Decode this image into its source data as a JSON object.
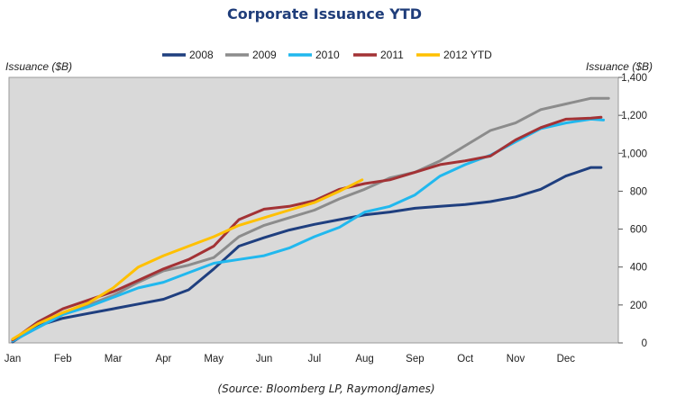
{
  "chart_data": {
    "type": "line",
    "title": "Corporate Issuance YTD",
    "ylabel_left": "Issuance ($B)",
    "ylabel_right": "Issuance ($B)",
    "months": [
      "Jan",
      "Feb",
      "Mar",
      "Apr",
      "May",
      "Jun",
      "Jul",
      "Aug",
      "Sep",
      "Oct",
      "Nov",
      "Dec"
    ],
    "ylim": [
      0,
      1400
    ],
    "yticks": [
      0,
      200,
      400,
      600,
      800,
      1000,
      1200,
      1400
    ],
    "ytick_labels": [
      "0",
      "200",
      "400",
      "600",
      "800",
      "1,000",
      "1,200",
      "1,400"
    ],
    "plot_background": "#d9d9d9",
    "legend_position": "top",
    "series": [
      {
        "name": "2008",
        "color": "#1f3f7f",
        "x": [
          0,
          0.5,
          1,
          1.5,
          2,
          2.5,
          3,
          3.5,
          4,
          4.5,
          5,
          5.5,
          6,
          6.5,
          7,
          7.5,
          8,
          8.5,
          9,
          9.5,
          10,
          10.5,
          11,
          11.5,
          11.7
        ],
        "y": [
          5,
          90,
          130,
          155,
          180,
          205,
          230,
          280,
          390,
          510,
          555,
          595,
          625,
          650,
          675,
          690,
          710,
          720,
          730,
          745,
          770,
          810,
          880,
          925,
          925
        ]
      },
      {
        "name": "2009",
        "color": "#8c8c8c",
        "x": [
          0,
          0.5,
          1,
          1.5,
          2,
          2.5,
          3,
          3.5,
          4,
          4.5,
          5,
          5.5,
          6,
          6.5,
          7,
          7.5,
          8,
          8.5,
          9,
          9.5,
          10,
          10.5,
          11,
          11.5,
          11.85
        ],
        "y": [
          10,
          80,
          150,
          200,
          250,
          320,
          380,
          410,
          450,
          560,
          620,
          660,
          700,
          760,
          810,
          870,
          900,
          960,
          1040,
          1120,
          1160,
          1230,
          1260,
          1290,
          1290
        ]
      },
      {
        "name": "2010",
        "color": "#21b8ee",
        "x": [
          0,
          0.5,
          1,
          1.5,
          2,
          2.5,
          3,
          3.5,
          4,
          4.5,
          5,
          5.5,
          6,
          6.5,
          7,
          7.5,
          8,
          8.5,
          9,
          9.5,
          10,
          10.5,
          11,
          11.5,
          11.75
        ],
        "y": [
          10,
          80,
          150,
          190,
          240,
          290,
          320,
          370,
          420,
          440,
          460,
          500,
          560,
          610,
          690,
          720,
          780,
          880,
          940,
          990,
          1060,
          1130,
          1160,
          1180,
          1175
        ]
      },
      {
        "name": "2011",
        "color": "#a33235",
        "x": [
          0,
          0.5,
          1,
          1.5,
          2,
          2.5,
          3,
          3.5,
          4,
          4.5,
          5,
          5.5,
          6,
          6.5,
          7,
          7.5,
          8,
          8.5,
          9,
          9.5,
          10,
          10.5,
          11,
          11.5,
          11.7
        ],
        "y": [
          15,
          110,
          180,
          225,
          270,
          330,
          390,
          440,
          510,
          650,
          705,
          720,
          750,
          810,
          840,
          860,
          900,
          940,
          960,
          985,
          1070,
          1135,
          1180,
          1185,
          1190
        ]
      },
      {
        "name": "2012 YTD",
        "color": "#ffc000",
        "x": [
          0,
          0.5,
          1,
          1.5,
          2,
          2.5,
          3,
          3.5,
          4,
          4.5,
          5,
          5.5,
          6,
          6.5,
          6.95
        ],
        "y": [
          20,
          100,
          160,
          210,
          290,
          400,
          460,
          510,
          560,
          620,
          660,
          700,
          740,
          800,
          860
        ]
      }
    ]
  },
  "source": "(Source: Bloomberg LP, RaymondJames)"
}
